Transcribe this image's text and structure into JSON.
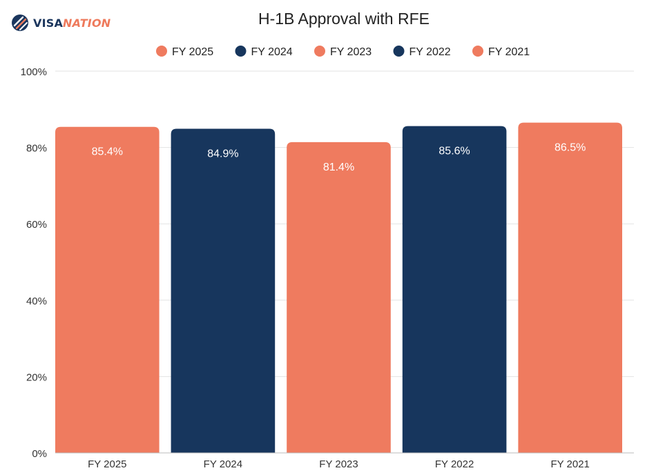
{
  "brand": {
    "name_part1": "VISA",
    "name_part2": "NATION",
    "primary_color": "#1b365d",
    "accent_color": "#ee7a5c"
  },
  "chart_data": {
    "type": "bar",
    "title": "H-1B Approval with RFE",
    "categories": [
      "FY 2025",
      "FY 2024",
      "FY 2023",
      "FY 2022",
      "FY 2021"
    ],
    "values": [
      85.4,
      84.9,
      81.4,
      85.6,
      86.5
    ],
    "value_labels": [
      "85.4%",
      "84.9%",
      "81.4%",
      "85.6%",
      "86.5%"
    ],
    "colors": [
      "#ef7b5f",
      "#17365d",
      "#ef7b5f",
      "#17365d",
      "#ef7b5f"
    ],
    "legend": [
      {
        "label": "FY 2025",
        "color": "#ef7b5f"
      },
      {
        "label": "FY 2024",
        "color": "#17365d"
      },
      {
        "label": "FY 2023",
        "color": "#ef7b5f"
      },
      {
        "label": "FY 2022",
        "color": "#17365d"
      },
      {
        "label": "FY 2021",
        "color": "#ef7b5f"
      }
    ],
    "legend_position": "top",
    "yticks": [
      0,
      20,
      40,
      60,
      80,
      100
    ],
    "ytick_labels": [
      "0%",
      "20%",
      "40%",
      "60%",
      "80%",
      "100%"
    ],
    "ylim": [
      0,
      100
    ],
    "xlabel": "",
    "ylabel": "",
    "grid": true
  }
}
